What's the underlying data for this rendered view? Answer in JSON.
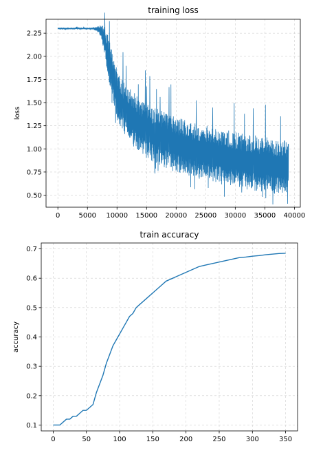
{
  "chart_data": [
    {
      "type": "line",
      "title": "training loss",
      "xlabel": "",
      "ylabel": "loss",
      "xlim": [
        -2000,
        41000
      ],
      "ylim": [
        0.37,
        2.4
      ],
      "xticks": [
        0,
        5000,
        10000,
        15000,
        20000,
        25000,
        30000,
        35000,
        40000
      ],
      "yticks": [
        0.5,
        0.75,
        1.0,
        1.25,
        1.5,
        1.75,
        2.0,
        2.25
      ],
      "ytick_labels": [
        "0.50",
        "0.75",
        "1.00",
        "1.25",
        "1.50",
        "1.75",
        "2.00",
        "2.25"
      ],
      "grid": true,
      "color": "#1f77b4",
      "series": [
        {
          "x": [
            0,
            2000,
            4000,
            6000,
            7000,
            7500,
            8000,
            8500,
            9000,
            9500,
            10000,
            11000,
            12000,
            13000,
            14000,
            15000,
            16000,
            17000,
            18000,
            19000,
            20000,
            21000,
            22000,
            23000,
            24000,
            25000,
            26000,
            27000,
            28000,
            29000,
            30000,
            31000,
            32000,
            33000,
            34000,
            35000,
            36000,
            37000,
            38000,
            39000
          ],
          "y": [
            2.3,
            2.3,
            2.3,
            2.3,
            2.29,
            2.25,
            2.15,
            2.0,
            1.85,
            1.7,
            1.58,
            1.45,
            1.36,
            1.3,
            1.24,
            1.2,
            1.16,
            1.13,
            1.1,
            1.07,
            1.05,
            1.03,
            1.01,
            0.99,
            0.97,
            0.96,
            0.94,
            0.93,
            0.91,
            0.9,
            0.89,
            0.88,
            0.86,
            0.85,
            0.84,
            0.83,
            0.82,
            0.81,
            0.8,
            0.8
          ],
          "spread": [
            0.01,
            0.01,
            0.01,
            0.01,
            0.04,
            0.1,
            0.18,
            0.22,
            0.25,
            0.27,
            0.28,
            0.29,
            0.3,
            0.3,
            0.3,
            0.3,
            0.3,
            0.3,
            0.3,
            0.3,
            0.3,
            0.3,
            0.3,
            0.3,
            0.3,
            0.3,
            0.3,
            0.3,
            0.3,
            0.3,
            0.3,
            0.3,
            0.3,
            0.3,
            0.3,
            0.3,
            0.3,
            0.3,
            0.3,
            0.3
          ]
        }
      ]
    },
    {
      "type": "line",
      "title": "train accuracy",
      "xlabel": "",
      "ylabel": "accuracy",
      "xlim": [
        -18,
        368
      ],
      "ylim": [
        0.08,
        0.72
      ],
      "xticks": [
        0,
        50,
        100,
        150,
        200,
        250,
        300,
        350
      ],
      "yticks": [
        0.1,
        0.2,
        0.3,
        0.4,
        0.5,
        0.6,
        0.7
      ],
      "ytick_labels": [
        "0.1",
        "0.2",
        "0.3",
        "0.4",
        "0.5",
        "0.6",
        "0.7"
      ],
      "grid": true,
      "color": "#1f77b4",
      "series": [
        {
          "x": [
            0,
            5,
            10,
            15,
            20,
            25,
            30,
            35,
            40,
            45,
            50,
            55,
            60,
            65,
            70,
            75,
            80,
            85,
            90,
            95,
            100,
            105,
            110,
            115,
            120,
            125,
            130,
            140,
            150,
            160,
            170,
            180,
            190,
            200,
            210,
            220,
            230,
            240,
            250,
            260,
            270,
            280,
            290,
            300,
            310,
            320,
            330,
            340,
            350
          ],
          "y": [
            0.1,
            0.1,
            0.1,
            0.11,
            0.12,
            0.12,
            0.13,
            0.13,
            0.14,
            0.15,
            0.15,
            0.16,
            0.17,
            0.21,
            0.24,
            0.27,
            0.31,
            0.34,
            0.37,
            0.39,
            0.41,
            0.43,
            0.45,
            0.47,
            0.48,
            0.5,
            0.51,
            0.53,
            0.55,
            0.57,
            0.59,
            0.6,
            0.61,
            0.62,
            0.63,
            0.64,
            0.645,
            0.65,
            0.655,
            0.66,
            0.665,
            0.67,
            0.672,
            0.675,
            0.677,
            0.68,
            0.682,
            0.684,
            0.685
          ]
        }
      ]
    }
  ]
}
